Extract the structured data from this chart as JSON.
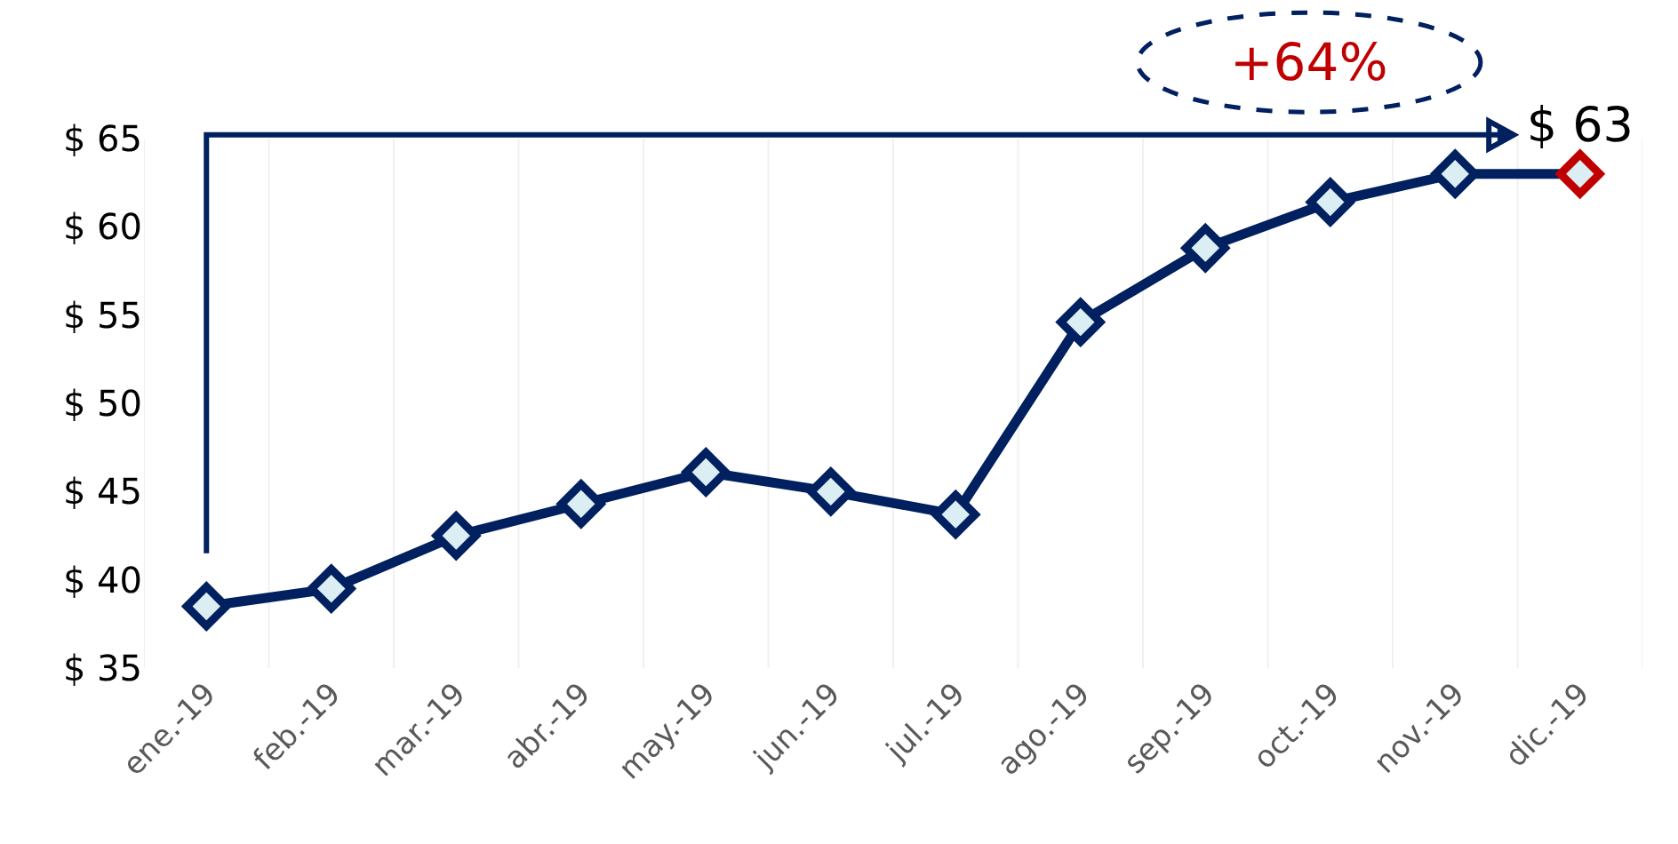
{
  "chart_data": {
    "type": "line",
    "categories": [
      "ene.-19",
      "feb.-19",
      "mar.-19",
      "abr.-19",
      "may.-19",
      "jun.-19",
      "jul.-19",
      "ago.-19",
      "sep.-19",
      "oct.-19",
      "nov.-19",
      "dic.-19"
    ],
    "series": [
      {
        "color": "#002060",
        "colors": [
          "#002060",
          "#002060",
          "#002060",
          "#002060",
          "#002060",
          "#002060",
          "#002060",
          "#002060",
          "#002060",
          "#002060",
          "#002060",
          "#c00000"
        ],
        "values": [
          38.5,
          39.5,
          42.5,
          44.3,
          46.1,
          45.0,
          43.7,
          54.6,
          58.8,
          61.4,
          63.0,
          63.0
        ],
        "value_labels": [
          null,
          null,
          null,
          null,
          null,
          null,
          null,
          null,
          null,
          null,
          null,
          "$ 63"
        ]
      }
    ],
    "ylim": [
      35,
      65
    ],
    "yticks": [
      {
        "value": 35,
        "label": "$ 35"
      },
      {
        "value": 40,
        "label": "$ 40"
      },
      {
        "value": 45,
        "label": "$ 45"
      },
      {
        "value": 50,
        "label": "$ 50"
      },
      {
        "value": 55,
        "label": "$ 55"
      },
      {
        "value": 60,
        "label": "$ 60"
      },
      {
        "value": 65,
        "label": "$ 65"
      }
    ],
    "grid": "x",
    "marker": "diamond",
    "line_style": "solid",
    "annotations": [
      "+64%"
    ]
  }
}
